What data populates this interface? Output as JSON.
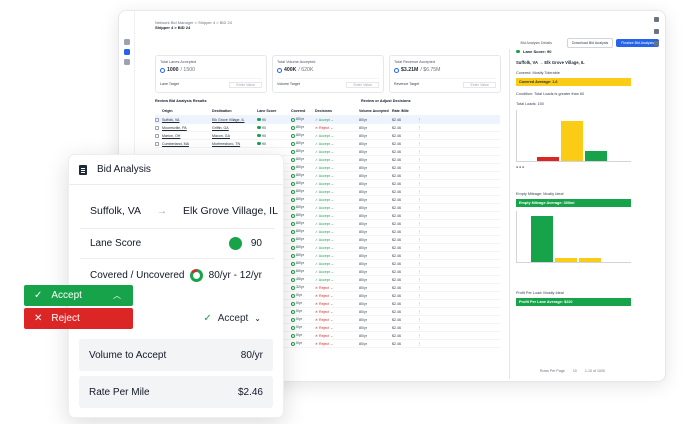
{
  "app": {
    "breadcrumb_root": "Network Bid Manager",
    "breadcrumb_sep": ">",
    "breadcrumb_current": "Shipper 4 > BID 24",
    "page_title": "Shipper 4 > BID 24",
    "top_link": "Bid Analysis Details",
    "btn_download": "Download Bid Analysis",
    "btn_finalize": "Finalize Bid Analysis",
    "metrics": [
      {
        "label": "Total Lanes Accepted",
        "value": "1000",
        "total": "/ 1500",
        "target_label": "Lane Target",
        "target_placeholder": "Enter Value"
      },
      {
        "label": "Total Volume Accepted",
        "value": "400K",
        "total": "/ 620K",
        "target_label": "Volume Target",
        "target_placeholder": "Enter Value"
      },
      {
        "label": "Total Revenue Accepted",
        "value": "$3.21M",
        "total": "/ $6.75M",
        "target_label": "Revenue Target",
        "target_placeholder": "Enter Value"
      }
    ],
    "table_title_left": "Review Bid Analysis Results",
    "table_title_right": "Review or Adjust Decisions",
    "columns": [
      "Origin",
      "Destination",
      "Lane Score",
      "Covered",
      "Decisions",
      "Volume Accepted",
      "Rate /Mile"
    ],
    "rows": [
      {
        "origin": "Suffolk, VA",
        "dest": "Elk Grove Village, IL",
        "score": "90",
        "covered": "80/yr",
        "decision": "Accept",
        "vol": "80/yr",
        "rate": "$2.46"
      },
      {
        "origin": "Mooresville, PA",
        "dest": "Griffin, GA",
        "score": "90",
        "covered": "80/yr",
        "decision": "Reject",
        "vol": "80/yr",
        "rate": "$2.46"
      },
      {
        "origin": "Marion, OH",
        "dest": "Macon, GA",
        "score": "90",
        "covered": "80/yr",
        "decision": "Accept",
        "vol": "80/yr",
        "rate": "$2.46"
      },
      {
        "origin": "Cumberland, MA",
        "dest": "Murfreesboro, TN",
        "score": "90",
        "covered": "80/yr",
        "decision": "Accept",
        "vol": "80/yr",
        "rate": "$2.46"
      }
    ],
    "more_rows_covered": [
      "80/yr",
      "80/yr",
      "80/yr",
      "80/yr",
      "80/yr",
      "80/yr",
      "80/yr",
      "80/yr",
      "80/yr",
      "80/yr",
      "80/yr",
      "80/yr",
      "80/yr",
      "80/yr",
      "80/yr",
      "60/yr",
      "45/yr",
      "32/yr",
      "0/yr",
      "0/yr",
      "0/yr",
      "0/yr",
      "0/yr",
      "0/yr",
      "0/yr"
    ],
    "more_rows_decision": [
      "Accept",
      "Accept",
      "Accept",
      "Accept",
      "Accept",
      "Accept",
      "Accept",
      "Accept",
      "Accept",
      "Accept",
      "Accept",
      "Accept",
      "Accept",
      "Accept",
      "Accept",
      "Accept",
      "Accept",
      "Reject",
      "Reject",
      "Reject",
      "Reject",
      "Reject",
      "Reject",
      "Reject",
      "Reject"
    ],
    "pager": {
      "rows_per_page": "Rows Per Page",
      "count": "10",
      "range": "1-10 of 1000"
    },
    "right_panel": {
      "lane_score_label": "Lane Score: 90",
      "route_from": "Suffolk, VA",
      "route_to": "Elk Grove Village, IL",
      "covered_title": "Covered: Mostly Tolerable",
      "covered_avg": "Covered Average: 1.6",
      "condition": "Condition: Total Loads is greater than 60",
      "total_loads": "Total Loads: 150",
      "empty_title": "Empty Mileage: Mostly Ideal",
      "empty_avg": "Empty Mileage Average: 300mi",
      "profit_title": "Profit Per Load: Mostly Ideal",
      "profit_avg": "Profit Per Lane Average: $220"
    }
  },
  "panel": {
    "title": "Bid Analysis",
    "origin": "Suffolk, VA",
    "destination": "Elk Grove Village, IL",
    "lane_score_label": "Lane Score",
    "lane_score_value": "90",
    "covered_label": "Covered / Uncovered",
    "covered_value": "80/yr - 12/yr",
    "decision_value": "Accept",
    "volume_label": "Volume to Accept",
    "volume_value": "80/yr",
    "rate_label": "Rate Per Mile",
    "rate_value": "$2.46"
  },
  "dropdown": {
    "accept_label": "Accept",
    "reject_label": "Reject"
  },
  "colors": {
    "accept": "#16a34a",
    "reject": "#dc2626",
    "primary": "#2563eb",
    "warning": "#facc15"
  }
}
